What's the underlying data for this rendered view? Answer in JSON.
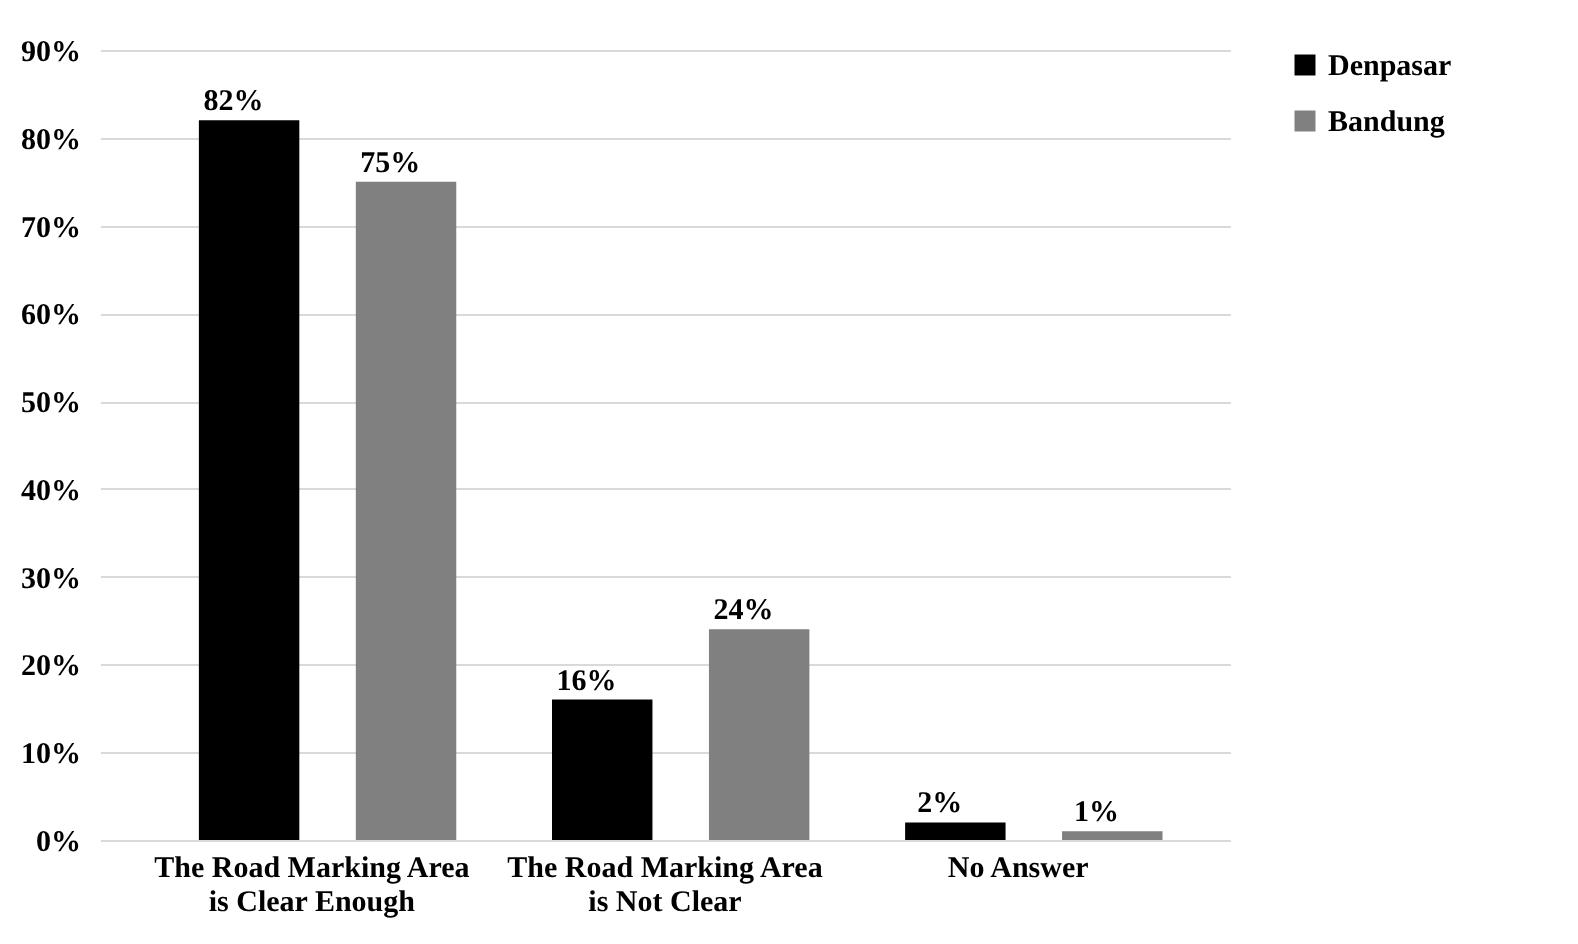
{
  "chart_data": {
    "type": "bar",
    "categories": [
      "The Road Marking Area is Clear Enough",
      "The Road Marking Area is Not Clear",
      "No Answer"
    ],
    "series": [
      {
        "name": "Denpasar",
        "color": "#000000",
        "values": [
          82,
          16,
          2
        ],
        "value_labels": [
          "82%",
          "16%",
          "2%"
        ]
      },
      {
        "name": "Bandung",
        "color": "#808080",
        "values": [
          75,
          24,
          1
        ],
        "value_labels": [
          "75%",
          "24%",
          "1%"
        ]
      }
    ],
    "ylim": [
      0,
      90
    ],
    "yticks": [
      {
        "value": 0,
        "label": "0%"
      },
      {
        "value": 10,
        "label": "10%"
      },
      {
        "value": 20,
        "label": "20%"
      },
      {
        "value": 30,
        "label": "30%"
      },
      {
        "value": 40,
        "label": "40%"
      },
      {
        "value": 50,
        "label": "50%"
      },
      {
        "value": 60,
        "label": "60%"
      },
      {
        "value": 70,
        "label": "70%"
      },
      {
        "value": 80,
        "label": "80%"
      },
      {
        "value": 90,
        "label": "90%"
      }
    ],
    "grid": "y",
    "legend": "right"
  }
}
